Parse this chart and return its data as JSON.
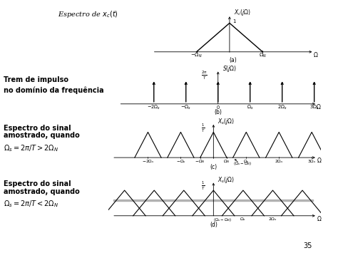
{
  "title_a": "Espectro de $x_c(t)$",
  "label_a_y": "$X_c(j\\Omega)$",
  "label_b_y": "$S(j\\Omega)$",
  "label_b_2pt": "$\\frac{2\\pi}{T}$",
  "label_c_y": "$X_s(j\\Omega)$",
  "label_c_1T": "$\\frac{1}{T}$",
  "label_d_y": "$X_s(j\\Omega)$",
  "label_d_1T": "$\\frac{1}{T}$",
  "label_b_left1": "Trem de impulso",
  "label_b_left2": "no domínio da frequência",
  "label_c_left1": "Espectro do sinal",
  "label_c_left2": "amostrado, quando",
  "label_c_left3": "$\\Omega_s = 2\\pi/T > 2\\Omega_N$",
  "label_d_left1": "Espectro do sinal",
  "label_d_left2": "amostrado, quando",
  "label_d_left3": "$\\Omega_s = 2\\pi/T < 2\\Omega_N$",
  "sub_a": "(a)",
  "sub_b": "(b)",
  "sub_c": "(c)",
  "sub_d": "(d)",
  "page_num": "35"
}
